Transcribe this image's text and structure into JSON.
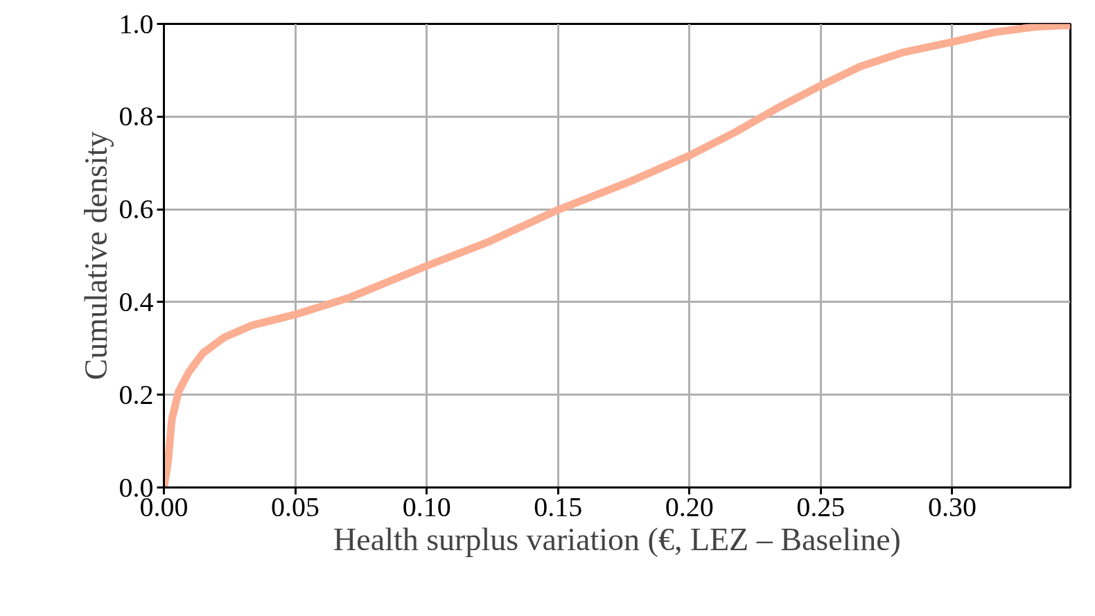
{
  "chart_data": {
    "type": "line",
    "xlabel": "Health surplus variation (€, LEZ – Baseline)",
    "ylabel": "Cumulative density",
    "xlim": [
      0,
      0.345
    ],
    "ylim": [
      0,
      1.0
    ],
    "xticks": [
      {
        "value": 0,
        "label": "0.00"
      },
      {
        "value": 0.05,
        "label": "0.05"
      },
      {
        "value": 0.1,
        "label": "0.10"
      },
      {
        "value": 0.15,
        "label": "0.15"
      },
      {
        "value": 0.2,
        "label": "0.20"
      },
      {
        "value": 0.25,
        "label": "0.25"
      },
      {
        "value": 0.3,
        "label": "0.30"
      }
    ],
    "yticks": [
      {
        "value": 0,
        "label": "0.0"
      },
      {
        "value": 0.2,
        "label": "0.2"
      },
      {
        "value": 0.4,
        "label": "0.4"
      },
      {
        "value": 0.6,
        "label": "0.6"
      },
      {
        "value": 0.8,
        "label": "0.8"
      },
      {
        "value": 1.0,
        "label": "1.0"
      }
    ],
    "grid": true,
    "line_style": "solid",
    "series": [
      {
        "color": "#fbae92",
        "x": [
          0.0,
          0.0016,
          0.003,
          0.0056,
          0.0096,
          0.0149,
          0.023,
          0.0336,
          0.05,
          0.0708,
          0.1,
          0.124,
          0.15,
          0.177,
          0.2,
          0.217,
          0.233,
          0.25,
          0.265,
          0.281,
          0.3,
          0.316,
          0.332,
          0.345
        ],
        "values": [
          0.0,
          0.056,
          0.146,
          0.207,
          0.25,
          0.29,
          0.324,
          0.35,
          0.373,
          0.41,
          0.478,
          0.531,
          0.599,
          0.659,
          0.716,
          0.765,
          0.817,
          0.867,
          0.908,
          0.938,
          0.961,
          0.982,
          0.994,
          0.997
        ]
      }
    ]
  }
}
